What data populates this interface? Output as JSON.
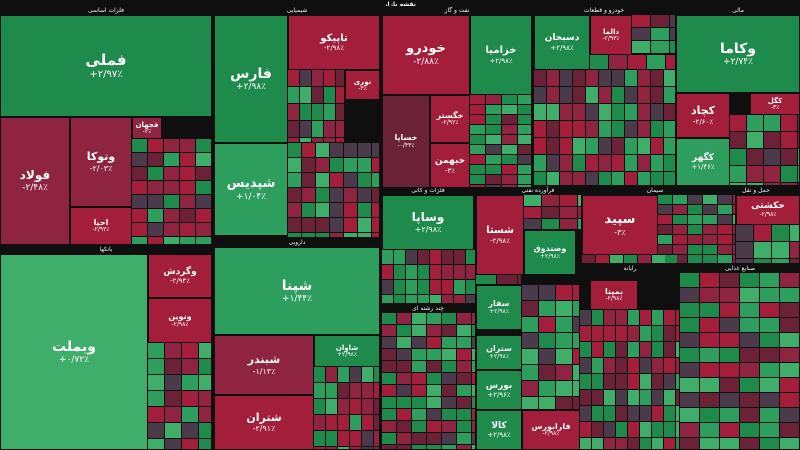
{
  "header": {
    "title": "نقشه بازار"
  },
  "colors": {
    "up_strong": "#1e8a4c",
    "up": "#2e9e5e",
    "up_light": "#3fae6a",
    "down_strong": "#a31e3b",
    "down": "#8e2440",
    "down_dark": "#6b2136",
    "neutral": "#4a3a4a",
    "background": "#0f0f0f"
  },
  "chart_data": {
    "type": "heatmap",
    "title": "نقشه بازار",
    "sectors": [
      {
        "name": "فلزات اساسی"
      },
      {
        "name": "شیمیایی"
      },
      {
        "name": "نفت و گاز"
      },
      {
        "name": "خودرو و قطعات"
      },
      {
        "name": "مالی"
      },
      {
        "name": "بانکها"
      },
      {
        "name": "فرآورده نفتی"
      },
      {
        "name": "سیمان"
      },
      {
        "name": "حمل و نقل"
      },
      {
        "name": "فلزات و کانی"
      },
      {
        "name": "دارویی"
      },
      {
        "name": "چند رشته ای"
      },
      {
        "name": "رایانه"
      },
      {
        "name": "صنایع غذایی"
      }
    ],
    "tiles": [
      {
        "symbol": "فملی",
        "change": "+۲/۹۷٪",
        "pct": 2.97
      },
      {
        "symbol": "فولاد",
        "change": "-۲/۴۸٪",
        "pct": -2.48
      },
      {
        "symbol": "وتوکا",
        "change": "-۲/۰۳٪",
        "pct": -2.03
      },
      {
        "symbol": "فجهان",
        "change": "-۲٪",
        "pct": -2.0
      },
      {
        "symbol": "احیا",
        "change": "-۲/۹۲٪",
        "pct": -2.92
      },
      {
        "symbol": "فارس",
        "change": "+۲/۹۸٪",
        "pct": 2.98
      },
      {
        "symbol": "شپدیس",
        "change": "+۱/۰۴٪",
        "pct": 1.04
      },
      {
        "symbol": "تاپیکو",
        "change": "-۲/۹۸٪",
        "pct": -2.98
      },
      {
        "symbol": "نوری",
        "change": "-۳٪",
        "pct": -3.0
      },
      {
        "symbol": "خودرو",
        "change": "-۲/۸۸٪",
        "pct": -2.88
      },
      {
        "symbol": "خزامیا",
        "change": "+۲/۹۸٪",
        "pct": 2.98
      },
      {
        "symbol": "خگستر",
        "change": "-۲/۹۲٪",
        "pct": -2.92
      },
      {
        "symbol": "خساپا",
        "change": "-۰/۴۴٪",
        "pct": -0.44
      },
      {
        "symbol": "خبهمن",
        "change": "-۳٪",
        "pct": -3.0
      },
      {
        "symbol": "دسبحان",
        "change": "+۲/۹۸٪",
        "pct": 2.98
      },
      {
        "symbol": "دالما",
        "change": "-۲/۹۳٪",
        "pct": -2.93
      },
      {
        "symbol": "وکاما",
        "change": "+۲/۷۴٪",
        "pct": 2.74
      },
      {
        "symbol": "کچاد",
        "change": "-۲/۶۰٪",
        "pct": -2.6
      },
      {
        "symbol": "کگل",
        "change": "-۳٪",
        "pct": -3.0
      },
      {
        "symbol": "کگهر",
        "change": "+۱/۴۶٪",
        "pct": 1.46
      },
      {
        "symbol": "وساپا",
        "change": "+۲/۹۸٪",
        "pct": 2.98
      },
      {
        "symbol": "شستا",
        "change": "-۲/۹۸٪",
        "pct": -2.98
      },
      {
        "symbol": "وصندوق",
        "change": "+۲/۹۸٪",
        "pct": 2.98
      },
      {
        "symbol": "سپید",
        "change": "-۳٪",
        "pct": -3.0
      },
      {
        "symbol": "حکشتی",
        "change": "-۲/۹۸٪",
        "pct": -2.98
      },
      {
        "symbol": "وبملت",
        "change": "+۰/۷۲٪",
        "pct": 0.72
      },
      {
        "symbol": "وگردش",
        "change": "-۲/۹۴٪",
        "pct": -2.94
      },
      {
        "symbol": "ونوین",
        "change": "-۲/۹۸٪",
        "pct": -2.98
      },
      {
        "symbol": "شپنا",
        "change": "+۱/۴۴٪",
        "pct": 1.44
      },
      {
        "symbol": "شبندر",
        "change": "-۱/۱۳٪",
        "pct": -1.13
      },
      {
        "symbol": "شتران",
        "change": "-۲/۹۱٪",
        "pct": -2.91
      },
      {
        "symbol": "شاوان",
        "change": "+۲/۹۸٪",
        "pct": 2.98
      },
      {
        "symbol": "بورس",
        "change": "+۲/۹۶٪",
        "pct": 2.96
      },
      {
        "symbol": "کالا",
        "change": "+۲/۹۸٪",
        "pct": 2.98
      },
      {
        "symbol": "سفار",
        "change": "+۲/۹۸٪",
        "pct": 2.98
      },
      {
        "symbol": "ستران",
        "change": "+۲/۹۸٪",
        "pct": 2.98
      },
      {
        "symbol": "بمپنا",
        "change": "-۲/۹۸٪",
        "pct": -2.98
      },
      {
        "symbol": "فارابورس",
        "change": "-۲/۹۸٪",
        "pct": -2.98
      }
    ]
  }
}
